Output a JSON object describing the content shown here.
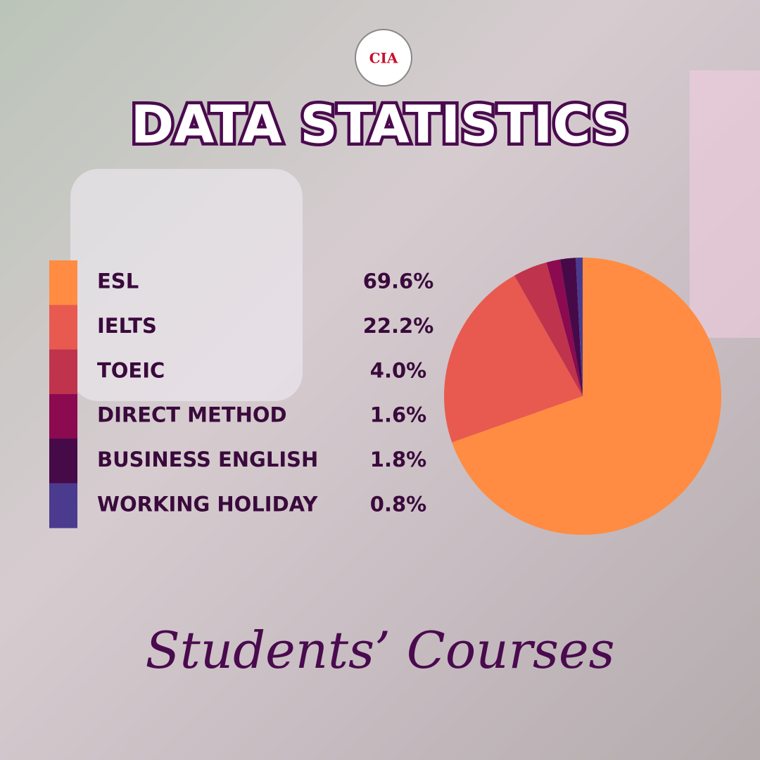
{
  "logo": "CIA",
  "chart_data": {
    "type": "pie",
    "title": "DATA STATISTICS",
    "subtitle": "Students’ Courses",
    "categories": [
      "ESL",
      "IELTS",
      "TOEIC",
      "DIRECT METHOD",
      "BUSINESS ENGLISH",
      "WORKING HOLIDAY"
    ],
    "values": [
      69.6,
      22.2,
      4.0,
      1.6,
      1.8,
      0.8
    ],
    "value_labels": [
      "69.6%",
      "22.2%",
      "4.0%",
      "1.6%",
      "1.8%",
      "0.8%"
    ],
    "colors": [
      "#ff8c42",
      "#e85a4f",
      "#c0334d",
      "#8b0a50",
      "#470a48",
      "#4b3b8f"
    ]
  }
}
